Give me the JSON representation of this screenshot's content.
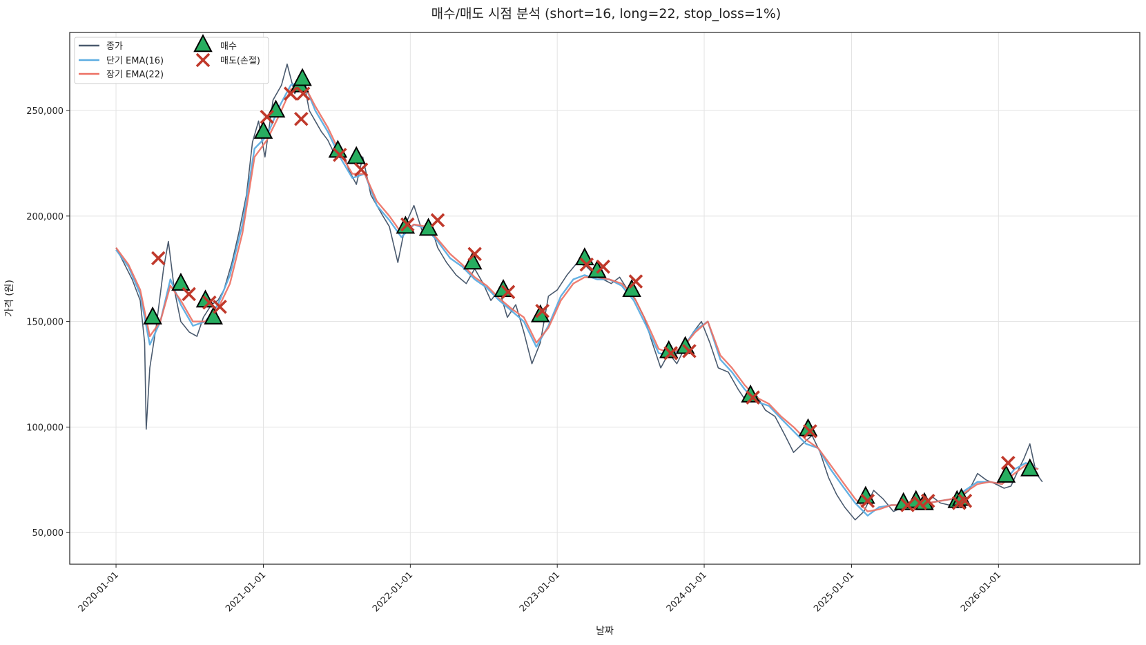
{
  "chart_data": {
    "type": "line",
    "title": "매수/매도 시점 분석 (short=16, long=22, stop_loss=1%)",
    "xlabel": "날짜",
    "ylabel": "가격 (원)",
    "x_range": [
      "2019-09-08",
      "2026-12-18"
    ],
    "ylim": [
      35000,
      287000
    ],
    "yticks": [
      50000,
      100000,
      150000,
      200000,
      250000
    ],
    "ytick_labels": [
      "50,000",
      "100,000",
      "150,000",
      "200,000",
      "250,000"
    ],
    "xticks": [
      "2020-01-01",
      "2021-01-01",
      "2022-01-01",
      "2023-01-01",
      "2024-01-01",
      "2025-01-01",
      "2026-01-01"
    ],
    "grid": true,
    "legend_position": "top-left",
    "colors": {
      "close": "#4a5a6e",
      "short_ema": "#5dade2",
      "long_ema": "#ec7063",
      "buy_fill": "#27ae60",
      "sell": "#c0392b"
    },
    "legend": [
      {
        "label": "종가",
        "kind": "line",
        "color": "#4a5a6e"
      },
      {
        "label": "단기 EMA(16)",
        "kind": "line",
        "color": "#5dade2"
      },
      {
        "label": "장기 EMA(22)",
        "kind": "line",
        "color": "#ec7063"
      },
      {
        "label": "매수",
        "kind": "triangle",
        "color": "#27ae60"
      },
      {
        "label": "매도(손절)",
        "kind": "cross",
        "color": "#c0392b"
      }
    ],
    "series": [
      {
        "name": "종가",
        "x": [
          "2020-01-01",
          "2020-01-20",
          "2020-02-10",
          "2020-03-01",
          "2020-03-12",
          "2020-03-16",
          "2020-03-25",
          "2020-04-10",
          "2020-04-28",
          "2020-05-10",
          "2020-05-25",
          "2020-06-10",
          "2020-07-01",
          "2020-07-20",
          "2020-08-05",
          "2020-08-25",
          "2020-09-10",
          "2020-09-25",
          "2020-10-15",
          "2020-11-01",
          "2020-11-20",
          "2020-12-05",
          "2020-12-20",
          "2021-01-05",
          "2021-01-25",
          "2021-02-15",
          "2021-03-01",
          "2021-03-20",
          "2021-04-10",
          "2021-04-25",
          "2021-05-10",
          "2021-05-25",
          "2021-06-10",
          "2021-06-30",
          "2021-07-15",
          "2021-08-01",
          "2021-08-20",
          "2021-09-05",
          "2021-09-25",
          "2021-10-10",
          "2021-10-25",
          "2021-11-10",
          "2021-12-01",
          "2021-12-20",
          "2022-01-10",
          "2022-02-01",
          "2022-02-20",
          "2022-03-10",
          "2022-04-01",
          "2022-04-25",
          "2022-05-20",
          "2022-06-10",
          "2022-07-01",
          "2022-07-20",
          "2022-08-10",
          "2022-08-30",
          "2022-09-20",
          "2022-10-10",
          "2022-10-30",
          "2022-11-20",
          "2022-12-10",
          "2023-01-01",
          "2023-01-25",
          "2023-02-20",
          "2023-03-15",
          "2023-04-05",
          "2023-04-25",
          "2023-05-15",
          "2023-06-05",
          "2023-06-25",
          "2023-07-15",
          "2023-08-05",
          "2023-08-25",
          "2023-09-15",
          "2023-10-05",
          "2023-10-25",
          "2023-11-15",
          "2023-12-05",
          "2023-12-25",
          "2024-01-15",
          "2024-02-05",
          "2024-03-01",
          "2024-03-25",
          "2024-04-15",
          "2024-05-10",
          "2024-06-01",
          "2024-06-25",
          "2024-07-20",
          "2024-08-10",
          "2024-09-01",
          "2024-09-25",
          "2024-10-15",
          "2024-11-05",
          "2024-11-25",
          "2024-12-15",
          "2025-01-10",
          "2025-02-01",
          "2025-02-25",
          "2025-03-20",
          "2025-04-15",
          "2025-05-10",
          "2025-06-01",
          "2025-06-25",
          "2025-07-20",
          "2025-08-10",
          "2025-09-01",
          "2025-09-25",
          "2025-10-20",
          "2025-11-10",
          "2025-12-01",
          "2025-12-25",
          "2026-01-15",
          "2026-02-01",
          "2026-02-20",
          "2026-03-05",
          "2026-03-20",
          "2026-04-05",
          "2026-04-20"
        ],
        "values": [
          185000,
          178000,
          170000,
          160000,
          140000,
          99000,
          128000,
          148000,
          175000,
          188000,
          165000,
          150000,
          145000,
          143000,
          152000,
          158000,
          160000,
          165000,
          178000,
          192000,
          210000,
          235000,
          245000,
          228000,
          255000,
          262000,
          272000,
          258000,
          265000,
          250000,
          245000,
          240000,
          236000,
          228000,
          232000,
          222000,
          215000,
          228000,
          210000,
          205000,
          200000,
          195000,
          178000,
          196000,
          205000,
          192000,
          196000,
          185000,
          178000,
          172000,
          168000,
          175000,
          168000,
          160000,
          165000,
          152000,
          158000,
          145000,
          130000,
          140000,
          162000,
          165000,
          172000,
          178000,
          176000,
          172000,
          170000,
          168000,
          171000,
          165000,
          160000,
          152000,
          140000,
          128000,
          135000,
          130000,
          138000,
          145000,
          150000,
          140000,
          128000,
          126000,
          118000,
          112000,
          115000,
          108000,
          105000,
          96000,
          88000,
          92000,
          96000,
          88000,
          76000,
          68000,
          62000,
          56000,
          60000,
          70000,
          66000,
          60000,
          62000,
          65000,
          62000,
          67000,
          64000,
          63000,
          66000,
          70000,
          78000,
          75000,
          73000,
          71000,
          72000,
          80000,
          85000,
          92000,
          78000,
          74000
        ]
      },
      {
        "name": "단기 EMA(16)",
        "x": [
          "2020-01-01",
          "2020-02-01",
          "2020-03-01",
          "2020-03-25",
          "2020-04-20",
          "2020-05-15",
          "2020-06-10",
          "2020-07-10",
          "2020-08-10",
          "2020-09-10",
          "2020-10-10",
          "2020-11-10",
          "2020-12-10",
          "2021-01-10",
          "2021-02-10",
          "2021-03-10",
          "2021-04-10",
          "2021-05-10",
          "2021-06-10",
          "2021-07-10",
          "2021-08-10",
          "2021-09-10",
          "2021-10-10",
          "2021-11-10",
          "2021-12-10",
          "2022-01-10",
          "2022-02-10",
          "2022-03-10",
          "2022-04-10",
          "2022-05-10",
          "2022-06-10",
          "2022-07-10",
          "2022-08-10",
          "2022-09-10",
          "2022-10-10",
          "2022-11-10",
          "2022-12-10",
          "2023-01-10",
          "2023-02-10",
          "2023-03-10",
          "2023-04-10",
          "2023-05-10",
          "2023-06-10",
          "2023-07-10",
          "2023-08-10",
          "2023-09-10",
          "2023-10-10",
          "2023-11-10",
          "2023-12-10",
          "2024-01-10",
          "2024-02-10",
          "2024-03-10",
          "2024-04-10",
          "2024-05-10",
          "2024-06-10",
          "2024-07-10",
          "2024-08-10",
          "2024-09-10",
          "2024-10-10",
          "2024-11-10",
          "2024-12-10",
          "2025-01-10",
          "2025-02-10",
          "2025-03-10",
          "2025-04-10",
          "2025-05-10",
          "2025-06-10",
          "2025-07-10",
          "2025-08-10",
          "2025-09-10",
          "2025-10-10",
          "2025-11-10",
          "2025-12-10",
          "2026-01-10",
          "2026-02-10",
          "2026-03-10",
          "2026-04-10"
        ],
        "values": [
          184000,
          176000,
          163000,
          139000,
          150000,
          170000,
          158000,
          148000,
          150000,
          158000,
          172000,
          196000,
          232000,
          238000,
          252000,
          262000,
          264000,
          250000,
          240000,
          228000,
          218000,
          220000,
          205000,
          198000,
          190000,
          196000,
          194000,
          188000,
          180000,
          176000,
          170000,
          166000,
          160000,
          155000,
          150000,
          138000,
          148000,
          162000,
          170000,
          172000,
          170000,
          170000,
          167000,
          160000,
          148000,
          135000,
          134000,
          138000,
          146000,
          150000,
          132000,
          126000,
          118000,
          112000,
          110000,
          104000,
          98000,
          92000,
          90000,
          80000,
          72000,
          64000,
          58000,
          62000,
          63000,
          63000,
          63000,
          64000,
          65000,
          66000,
          70000,
          74000,
          74000,
          73000,
          80000,
          83000,
          80000
        ]
      },
      {
        "name": "장기 EMA(22)",
        "x": [
          "2020-01-01",
          "2020-02-01",
          "2020-03-01",
          "2020-03-25",
          "2020-04-20",
          "2020-05-15",
          "2020-06-10",
          "2020-07-10",
          "2020-08-10",
          "2020-09-10",
          "2020-10-10",
          "2020-11-10",
          "2020-12-10",
          "2021-01-10",
          "2021-02-10",
          "2021-03-10",
          "2021-04-10",
          "2021-05-10",
          "2021-06-10",
          "2021-07-10",
          "2021-08-10",
          "2021-09-10",
          "2021-10-10",
          "2021-11-10",
          "2021-12-10",
          "2022-01-10",
          "2022-02-10",
          "2022-03-10",
          "2022-04-10",
          "2022-05-10",
          "2022-06-10",
          "2022-07-10",
          "2022-08-10",
          "2022-09-10",
          "2022-10-10",
          "2022-11-10",
          "2022-12-10",
          "2023-01-10",
          "2023-02-10",
          "2023-03-10",
          "2023-04-10",
          "2023-05-10",
          "2023-06-10",
          "2023-07-10",
          "2023-08-10",
          "2023-09-10",
          "2023-10-10",
          "2023-11-10",
          "2023-12-10",
          "2024-01-10",
          "2024-02-10",
          "2024-03-10",
          "2024-04-10",
          "2024-05-10",
          "2024-06-10",
          "2024-07-10",
          "2024-08-10",
          "2024-09-10",
          "2024-10-10",
          "2024-11-10",
          "2024-12-10",
          "2025-01-10",
          "2025-02-10",
          "2025-03-10",
          "2025-04-10",
          "2025-05-10",
          "2025-06-10",
          "2025-07-10",
          "2025-08-10",
          "2025-09-10",
          "2025-10-10",
          "2025-11-10",
          "2025-12-10",
          "2026-01-10",
          "2026-02-10",
          "2026-03-10",
          "2026-04-10"
        ],
        "values": [
          185000,
          177000,
          165000,
          143000,
          150000,
          167000,
          160000,
          150000,
          150000,
          156000,
          168000,
          192000,
          228000,
          236000,
          248000,
          260000,
          263000,
          252000,
          242000,
          230000,
          220000,
          220000,
          207000,
          200000,
          192000,
          196000,
          195000,
          189000,
          182000,
          177000,
          171000,
          167000,
          161000,
          156000,
          152000,
          140000,
          147000,
          160000,
          168000,
          171000,
          171000,
          170000,
          168000,
          162000,
          150000,
          137000,
          135000,
          138000,
          145000,
          150000,
          134000,
          128000,
          120000,
          114000,
          111000,
          105000,
          100000,
          94000,
          90000,
          82000,
          74000,
          66000,
          60000,
          61000,
          63000,
          63000,
          63000,
          64000,
          65000,
          66000,
          69000,
          73000,
          74000,
          73000,
          78000,
          82000,
          80000
        ]
      }
    ],
    "buy_points": {
      "x": [
        "2020-04-01",
        "2020-06-10",
        "2020-08-10",
        "2020-08-30",
        "2021-01-01",
        "2021-02-01",
        "2021-04-01",
        "2021-04-08",
        "2021-07-05",
        "2021-08-20",
        "2021-12-20",
        "2022-02-15",
        "2022-06-05",
        "2022-08-20",
        "2022-11-20",
        "2023-03-10",
        "2023-04-10",
        "2023-07-05",
        "2023-10-05",
        "2023-11-15",
        "2024-04-25",
        "2024-09-15",
        "2025-02-05",
        "2025-05-10",
        "2025-06-10",
        "2025-07-01",
        "2025-09-20",
        "2025-10-01",
        "2026-01-20",
        "2026-03-20"
      ],
      "values": [
        152000,
        168000,
        160000,
        152000,
        240000,
        250000,
        262000,
        265000,
        231000,
        228000,
        195000,
        194000,
        178000,
        165000,
        153000,
        180000,
        174000,
        165000,
        136000,
        138000,
        115000,
        99000,
        67000,
        64000,
        65000,
        64000,
        65000,
        66000,
        77000,
        80000
      ]
    },
    "sell_points": {
      "x": [
        "2020-04-15",
        "2020-06-30",
        "2020-08-20",
        "2020-09-15",
        "2021-01-10",
        "2021-03-10",
        "2021-04-05",
        "2021-04-10",
        "2021-07-10",
        "2021-09-01",
        "2021-12-25",
        "2022-03-10",
        "2022-06-10",
        "2022-09-01",
        "2022-11-25",
        "2023-03-15",
        "2023-04-25",
        "2023-07-15",
        "2023-10-10",
        "2023-11-25",
        "2024-05-01",
        "2024-09-20",
        "2025-02-10",
        "2025-05-20",
        "2025-06-20",
        "2025-07-10",
        "2025-09-25",
        "2025-10-10",
        "2026-01-25"
      ],
      "values": [
        180000,
        163000,
        159000,
        157000,
        247000,
        258000,
        246000,
        258000,
        229000,
        222000,
        196000,
        198000,
        182000,
        164000,
        155000,
        177000,
        176000,
        169000,
        135000,
        136000,
        114000,
        98000,
        65000,
        63000,
        64000,
        65000,
        64000,
        65000,
        83000
      ]
    }
  }
}
